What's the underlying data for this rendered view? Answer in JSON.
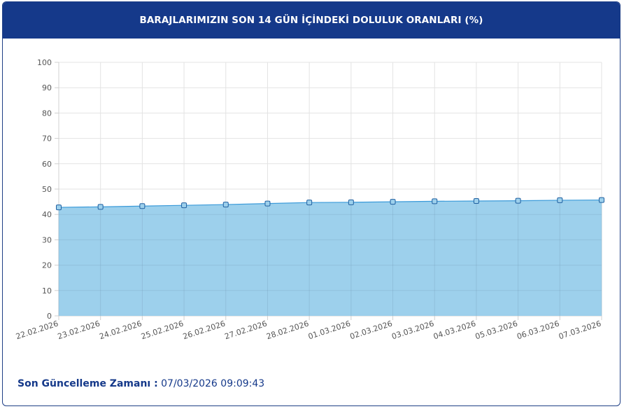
{
  "header": {
    "title": "BARAJLARIMIZIN SON 14 GÜN İÇİNDEKİ DOLULUK ORANLARI (%)"
  },
  "footer": {
    "label": "Son Güncelleme Zamanı :",
    "value": "07/03/2026 09:09:43"
  },
  "chart_data": {
    "type": "area",
    "title": "BARAJLARIMIZIN SON 14 GÜN İÇİNDEKİ DOLULUK ORANLARI (%)",
    "xlabel": "",
    "ylabel": "",
    "ylim": [
      0,
      100
    ],
    "yticks": [
      0,
      10,
      20,
      30,
      40,
      50,
      60,
      70,
      80,
      90,
      100
    ],
    "grid": true,
    "colors": {
      "fill": "#9dd0ec",
      "line": "#3a9ad9",
      "marker_fill": "#9dd0ec",
      "marker_stroke": "#1f5fa0"
    },
    "categories": [
      "22.02.2026",
      "23.02.2026",
      "24.02.2026",
      "25.02.2026",
      "26.02.2026",
      "27.02.2026",
      "28.02.2026",
      "01.03.2026",
      "02.03.2026",
      "03.03.2026",
      "04.03.2026",
      "05.03.2026",
      "06.03.2026",
      "07.03.2026"
    ],
    "series": [
      {
        "values": [
          42.8,
          43.0,
          43.3,
          43.6,
          43.9,
          44.3,
          44.7,
          44.8,
          45.0,
          45.2,
          45.3,
          45.4,
          45.6,
          45.7
        ]
      }
    ]
  }
}
